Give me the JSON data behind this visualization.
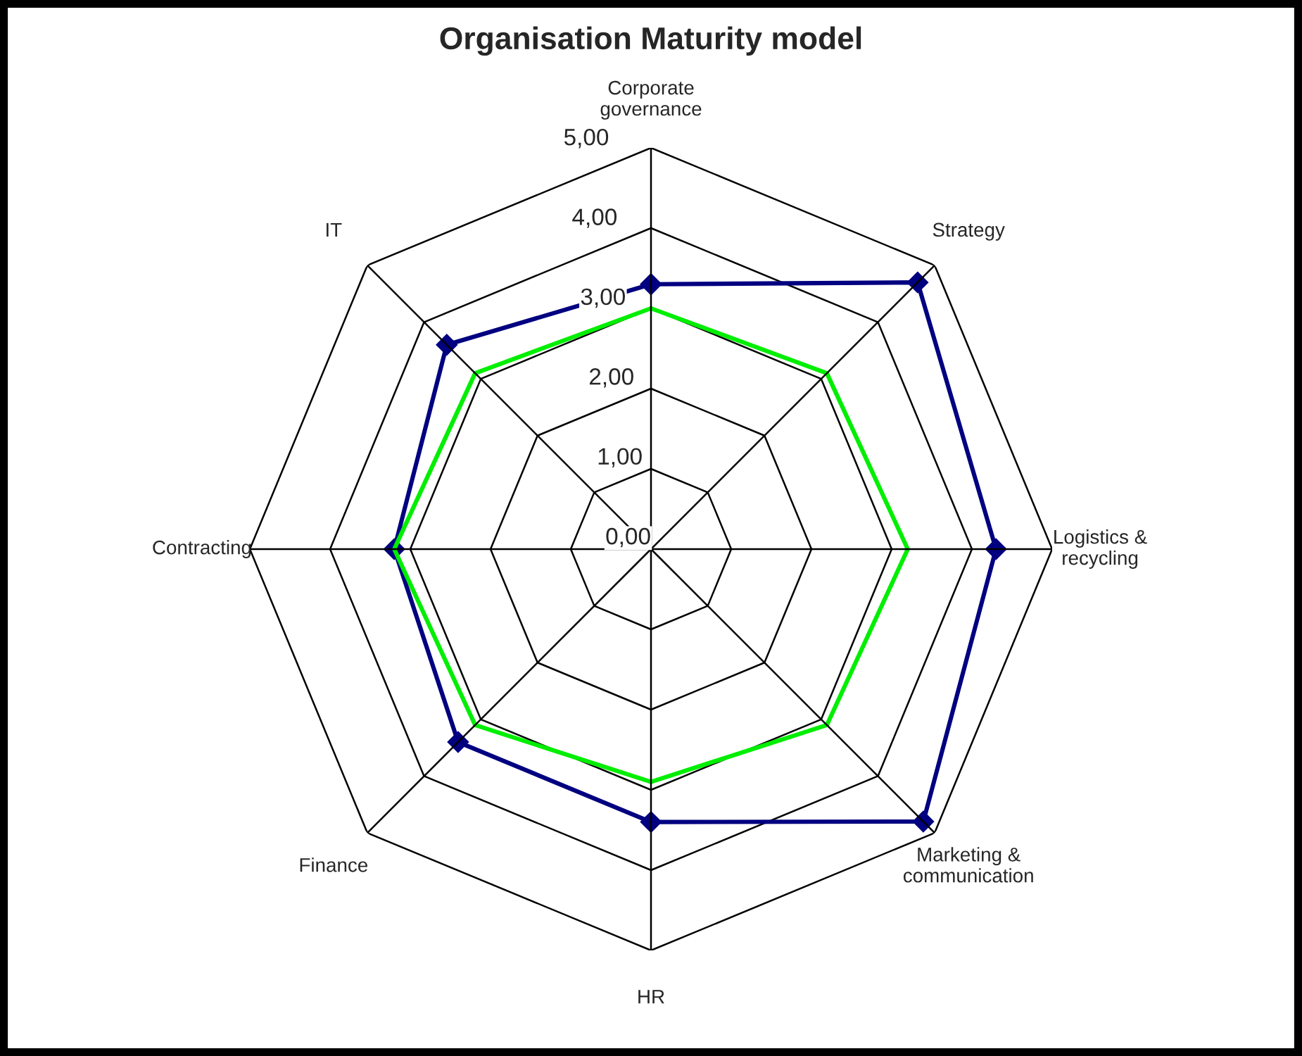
{
  "chart_data": {
    "type": "radar",
    "title": "Organisation Maturity model",
    "categories": [
      "Corporate\ngovernance",
      "Strategy",
      "Logistics &\nrecycling",
      "Marketing &\ncommunication",
      "HR",
      "Finance",
      "Contracting",
      "IT"
    ],
    "series": [
      {
        "color": "#000080",
        "marker": "diamond",
        "values": [
          3.3,
          4.7,
          4.3,
          4.8,
          3.4,
          3.4,
          3.2,
          3.6
        ]
      },
      {
        "color": "#00ee00",
        "marker": "none",
        "values": [
          3.0,
          3.1,
          3.2,
          3.1,
          2.9,
          3.1,
          3.2,
          3.1
        ]
      }
    ],
    "ylim": [
      0,
      5
    ],
    "yticks": [
      {
        "value": 0,
        "label": "0,00"
      },
      {
        "value": 1,
        "label": "1,00"
      },
      {
        "value": 2,
        "label": "2,00"
      },
      {
        "value": 3,
        "label": "3,00"
      },
      {
        "value": 4,
        "label": "4,00"
      },
      {
        "value": 5,
        "label": "5,00"
      }
    ],
    "grid": true,
    "legend": false
  }
}
